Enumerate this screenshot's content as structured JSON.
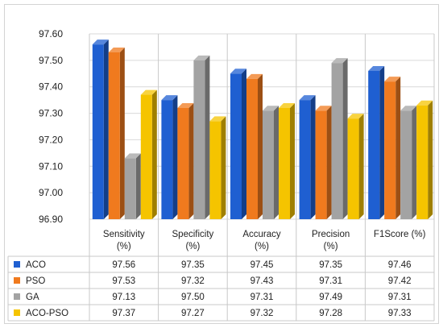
{
  "chart_data": {
    "type": "bar",
    "title": "",
    "xlabel": "",
    "ylabel": "",
    "ylim": [
      96.9,
      97.6
    ],
    "y_ticks": [
      "97.60",
      "97.50",
      "97.40",
      "97.30",
      "97.20",
      "97.10",
      "97.00",
      "96.90"
    ],
    "grid": true,
    "legend": "data-table",
    "categories": [
      {
        "line1": "Sensitivity",
        "line2": "(%)"
      },
      {
        "line1": "Specificity",
        "line2": "(%)"
      },
      {
        "line1": "Accuracy",
        "line2": "(%)"
      },
      {
        "line1": "Precision",
        "line2": "(%)"
      },
      {
        "line1": "F1Score (%)",
        "line2": ""
      }
    ],
    "series": [
      {
        "name": "ACO",
        "color": "#1f5fd1",
        "values": [
          97.56,
          97.35,
          97.45,
          97.35,
          97.46
        ],
        "labels": [
          "97.56",
          "97.35",
          "97.45",
          "97.35",
          "97.46"
        ]
      },
      {
        "name": "PSO",
        "color": "#f07a1e",
        "values": [
          97.53,
          97.32,
          97.43,
          97.31,
          97.42
        ],
        "labels": [
          "97.53",
          "97.32",
          "97.43",
          "97.31",
          "97.42"
        ]
      },
      {
        "name": "GA",
        "color": "#a3a3a3",
        "values": [
          97.13,
          97.5,
          97.31,
          97.49,
          97.31
        ],
        "labels": [
          "97.13",
          "97.50",
          "97.31",
          "97.49",
          "97.31"
        ]
      },
      {
        "name": "ACO-PSO",
        "color": "#f5c400",
        "values": [
          97.37,
          97.27,
          97.32,
          97.28,
          97.33
        ],
        "labels": [
          "97.37",
          "97.27",
          "97.32",
          "97.28",
          "97.33"
        ]
      }
    ]
  }
}
